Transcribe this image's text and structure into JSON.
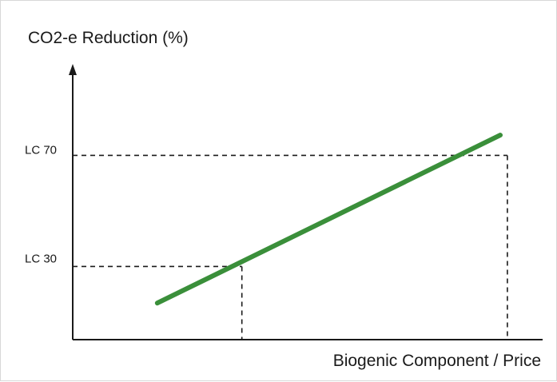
{
  "chart_data": {
    "type": "line",
    "title": "",
    "ylabel": "CO2-e  Reduction (%)",
    "xlabel": "Biogenic Component / Price",
    "ylim": [
      0,
      100
    ],
    "xlim": [
      0,
      100
    ],
    "grid": false,
    "yticks": [
      {
        "label": "LC 70",
        "value": 70
      },
      {
        "label": "LC 30",
        "value": 30
      }
    ],
    "series": [
      {
        "x": [
          18,
          100
        ],
        "y": [
          13.5,
          75.5
        ],
        "color": "#3a8f3a"
      }
    ],
    "guides": [
      {
        "label": "LC 30",
        "x": 36,
        "y": 27
      },
      {
        "label": "LC 70",
        "x": 92.5,
        "y": 68
      }
    ]
  }
}
